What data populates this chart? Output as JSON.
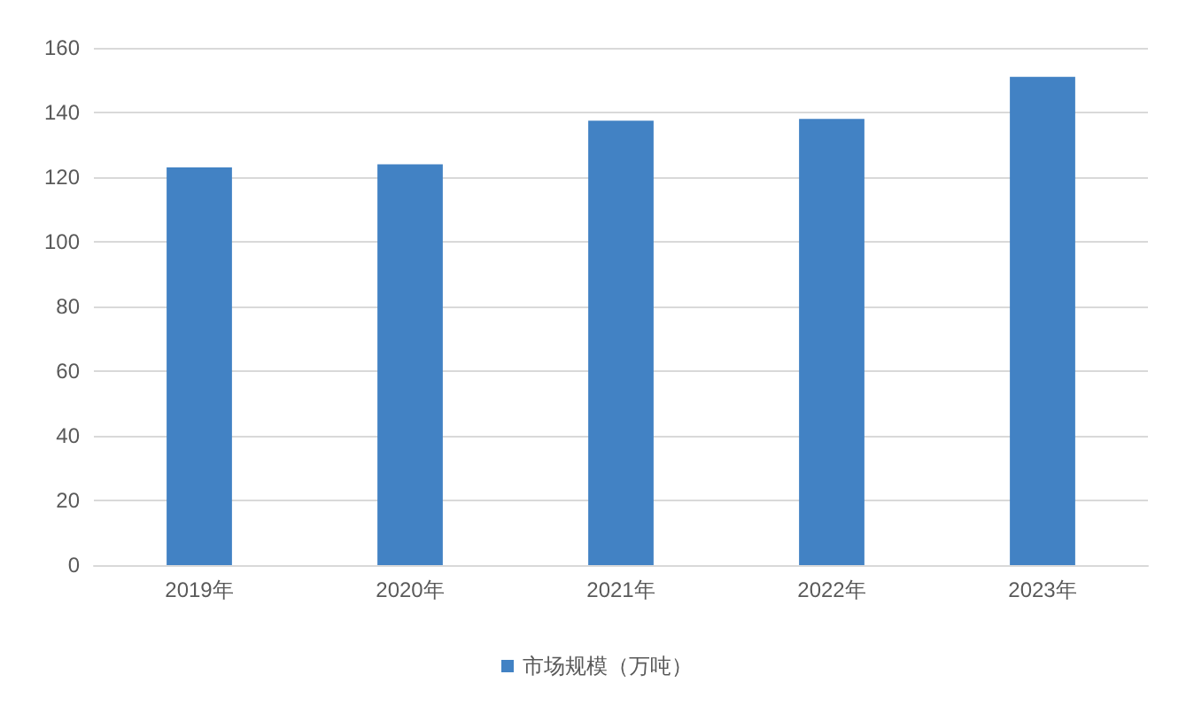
{
  "chart_data": {
    "type": "bar",
    "categories": [
      "2019年",
      "2020年",
      "2021年",
      "2022年",
      "2023年"
    ],
    "series": [
      {
        "name": "市场规模（万吨）",
        "color": "#4282c4",
        "values": [
          123,
          124,
          137.5,
          138,
          151
        ]
      }
    ],
    "ylim": [
      0,
      160
    ],
    "yticks": [
      0,
      20,
      40,
      60,
      80,
      100,
      120,
      140,
      160
    ],
    "grid": "y",
    "legend": "bottom"
  }
}
